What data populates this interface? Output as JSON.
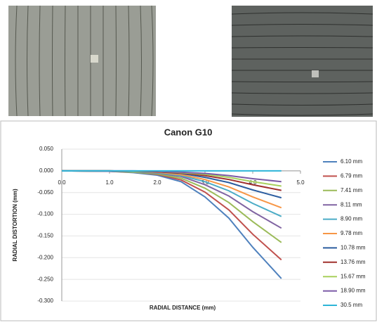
{
  "chart_data": {
    "type": "line",
    "title": "Canon G10",
    "x_label": "RADIAL DISTANCE (mm)",
    "y_label": "RADIAL DISTORTION (mm)",
    "x": [
      0,
      1,
      1.5,
      2,
      2.5,
      3,
      3.5,
      4,
      4.6
    ],
    "xlim": [
      0,
      5
    ],
    "xticks": [
      {
        "value": 0,
        "label": "0.0"
      },
      {
        "value": 1,
        "label": "1.0"
      },
      {
        "value": 2,
        "label": "2.0"
      },
      {
        "value": 3,
        "label": "3.0"
      },
      {
        "value": 4,
        "label": "4.0"
      },
      {
        "value": 5,
        "label": "5.0"
      }
    ],
    "ylim": [
      -0.3,
      0.05
    ],
    "yticks": [
      {
        "value": 0.05,
        "label": "0.050"
      },
      {
        "value": 0,
        "label": "0.000"
      },
      {
        "value": -0.05,
        "label": "-0.050"
      },
      {
        "value": -0.1,
        "label": "-0.100"
      },
      {
        "value": -0.15,
        "label": "-0.150"
      },
      {
        "value": -0.2,
        "label": "-0.200"
      },
      {
        "value": -0.25,
        "label": "-0.250"
      },
      {
        "value": -0.3,
        "label": "-0.300"
      }
    ],
    "grid": true,
    "legend": "right",
    "series": [
      {
        "name": "6.10 mm",
        "color": "#4f81bd",
        "values": [
          0,
          -0.001,
          -0.004,
          -0.01,
          -0.025,
          -0.06,
          -0.109,
          -0.176,
          -0.248
        ]
      },
      {
        "name": "6.79 mm",
        "color": "#c0504d",
        "values": [
          0,
          -0.001,
          -0.003,
          -0.008,
          -0.021,
          -0.049,
          -0.09,
          -0.146,
          -0.205
        ]
      },
      {
        "name": "7.41 mm",
        "color": "#9bbb59",
        "values": [
          0,
          -0.001,
          -0.003,
          -0.007,
          -0.017,
          -0.04,
          -0.073,
          -0.117,
          -0.165
        ]
      },
      {
        "name": "8.11 mm",
        "color": "#8064a2",
        "values": [
          0,
          -0.001,
          -0.002,
          -0.005,
          -0.013,
          -0.032,
          -0.058,
          -0.094,
          -0.132
        ]
      },
      {
        "name": "8.90 mm",
        "color": "#4bacc6",
        "values": [
          0,
          0,
          -0.002,
          -0.004,
          -0.011,
          -0.025,
          -0.046,
          -0.075,
          -0.105
        ]
      },
      {
        "name": "9.78 mm",
        "color": "#f79646",
        "values": [
          0,
          0,
          -0.001,
          -0.003,
          -0.009,
          -0.02,
          -0.037,
          -0.06,
          -0.085
        ]
      },
      {
        "name": "10.78 mm",
        "color": "#2c5d9f",
        "values": [
          0,
          0,
          -0.001,
          -0.002,
          -0.006,
          -0.015,
          -0.027,
          -0.044,
          -0.062
        ]
      },
      {
        "name": "13.76 mm",
        "color": "#a0302d",
        "values": [
          0,
          0,
          -0.001,
          -0.002,
          -0.005,
          -0.011,
          -0.02,
          -0.032,
          -0.045
        ]
      },
      {
        "name": "15.67 mm",
        "color": "#a8d05c",
        "values": [
          0,
          0,
          -0.001,
          -0.001,
          -0.004,
          -0.008,
          -0.015,
          -0.025,
          -0.035
        ]
      },
      {
        "name": "18.90 mm",
        "color": "#7b5aa6",
        "values": [
          0,
          0,
          0,
          -0.001,
          -0.003,
          -0.006,
          -0.011,
          -0.018,
          -0.025
        ]
      },
      {
        "name": "30.5 mm",
        "color": "#2eb5d8",
        "values": [
          0,
          0,
          0,
          0,
          0,
          0,
          0,
          0,
          0
        ]
      }
    ]
  }
}
